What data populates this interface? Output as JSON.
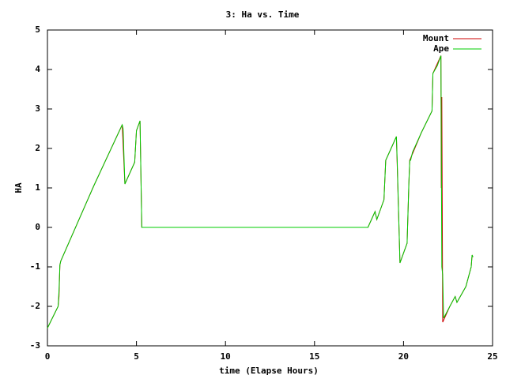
{
  "chart_data": {
    "type": "line",
    "title": "3: Ha vs. Time",
    "x_label": "time (Elapse Hours)",
    "y_label": "HA",
    "xlim": [
      0,
      25
    ],
    "ylim": [
      -3,
      5
    ],
    "xticks": [
      0,
      5,
      10,
      15,
      20,
      25
    ],
    "yticks": [
      -3,
      -2,
      -1,
      0,
      1,
      2,
      3,
      4,
      5
    ],
    "legend": "top-right",
    "series": [
      {
        "name": "Mount",
        "color": "#cc0000",
        "x": [
          0,
          0.6,
          0.65,
          0.7,
          0.75,
          2.6,
          4.2,
          4.35,
          4.9,
          5.0,
          5.2,
          5.3,
          18.0,
          18.4,
          18.5,
          18.9,
          19.0,
          19.6,
          19.8,
          20.2,
          20.3,
          20.35,
          21.0,
          21.6,
          21.65,
          22.1,
          22.12,
          22.15,
          22.2,
          22.6,
          22.9,
          23.0,
          23.5,
          23.8,
          23.85,
          23.9
        ],
        "values": [
          -2.55,
          -2.0,
          -1.75,
          -0.95,
          -0.85,
          1.05,
          2.6,
          1.1,
          1.65,
          2.45,
          2.7,
          0,
          0,
          0.4,
          0.2,
          0.7,
          1.7,
          2.3,
          -0.9,
          -0.4,
          1.1,
          1.7,
          2.4,
          2.95,
          3.9,
          4.35,
          1.0,
          3.3,
          -2.4,
          -2.0,
          -1.75,
          -1.9,
          -1.5,
          -1.0,
          -0.7,
          -0.75
        ]
      },
      {
        "name": "Ape",
        "color": "#00cc00",
        "x": [
          0,
          0.6,
          0.65,
          0.7,
          0.75,
          2.6,
          4.2,
          4.25,
          4.35,
          4.9,
          5.0,
          5.2,
          5.3,
          18.0,
          18.4,
          18.5,
          18.9,
          19.0,
          19.6,
          19.65,
          19.8,
          20.2,
          20.3,
          20.35,
          20.4,
          20.5,
          21.0,
          21.6,
          21.65,
          21.9,
          22.1,
          22.15,
          22.2,
          22.25,
          22.6,
          22.9,
          23.0,
          23.5,
          23.8,
          23.85,
          23.9
        ],
        "values": [
          -2.55,
          -2.0,
          -1.6,
          -0.95,
          -0.85,
          1.05,
          2.6,
          2.5,
          1.1,
          1.65,
          2.45,
          2.7,
          0,
          0,
          0.4,
          0.2,
          0.7,
          1.7,
          2.3,
          1.6,
          -0.9,
          -0.4,
          1.15,
          1.7,
          1.7,
          1.9,
          2.4,
          2.95,
          3.9,
          4.1,
          4.35,
          -1.0,
          -1.2,
          -2.3,
          -2.0,
          -1.75,
          -1.9,
          -1.5,
          -1.0,
          -0.7,
          -0.75
        ]
      }
    ]
  }
}
